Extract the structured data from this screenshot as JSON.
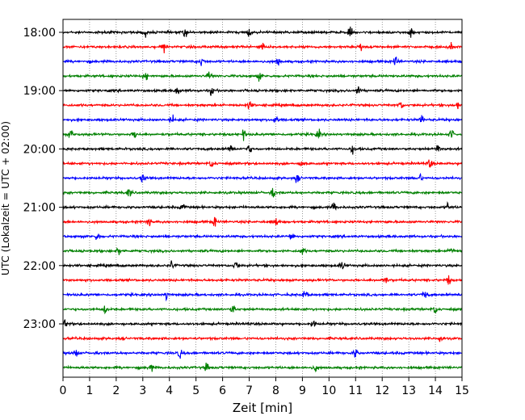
{
  "chart_data": {
    "type": "line",
    "title": "",
    "xlabel": "Zeit  [min]",
    "ylabel": "UTC (Lokalzeit = UTC + 02:00)",
    "xlim": [
      0,
      15
    ],
    "x_ticks": [
      "0",
      "1",
      "2",
      "3",
      "4",
      "5",
      "6",
      "7",
      "8",
      "9",
      "10",
      "11",
      "12",
      "13",
      "14",
      "15"
    ],
    "y_tick_labels": [
      "18:00",
      "19:00",
      "20:00",
      "21:00",
      "22:00",
      "23:00"
    ],
    "trace_interval_minutes": 15,
    "start_time": "18:00",
    "grid": "vertical dotted lines at each minute",
    "trace_colors": [
      "#000000",
      "#ff0000",
      "#0000ff",
      "#008000"
    ],
    "traces": [
      {
        "start": "18:00",
        "color": "#000000",
        "events": [
          3.1,
          4.6,
          7.0,
          10.8,
          13.1
        ]
      },
      {
        "start": "18:15",
        "color": "#ff0000",
        "events": [
          3.8,
          7.5,
          11.2,
          14.6
        ]
      },
      {
        "start": "18:30",
        "color": "#0000ff",
        "events": [
          5.2,
          8.1,
          12.5
        ]
      },
      {
        "start": "18:45",
        "color": "#008000",
        "events": [
          3.1,
          5.5,
          7.4
        ]
      },
      {
        "start": "19:00",
        "color": "#000000",
        "events": [
          4.3,
          5.6,
          11.1
        ]
      },
      {
        "start": "19:15",
        "color": "#ff0000",
        "events": [
          7.0,
          12.7,
          14.8
        ]
      },
      {
        "start": "19:30",
        "color": "#0000ff",
        "events": [
          4.1,
          8.0,
          13.5
        ]
      },
      {
        "start": "19:45",
        "color": "#008000",
        "events": [
          0.3,
          2.7,
          6.8,
          9.6,
          14.6
        ]
      },
      {
        "start": "20:00",
        "color": "#000000",
        "events": [
          6.3,
          7.0,
          10.9,
          14.1
        ]
      },
      {
        "start": "20:15",
        "color": "#ff0000",
        "events": [
          5.6,
          9.0,
          13.8
        ]
      },
      {
        "start": "20:30",
        "color": "#0000ff",
        "events": [
          3.0,
          8.8,
          13.4
        ]
      },
      {
        "start": "20:45",
        "color": "#008000",
        "events": [
          2.5,
          7.9
        ]
      },
      {
        "start": "21:00",
        "color": "#000000",
        "events": [
          4.5,
          10.2,
          14.5
        ]
      },
      {
        "start": "21:15",
        "color": "#ff0000",
        "events": [
          3.2,
          5.7,
          8.0
        ]
      },
      {
        "start": "21:30",
        "color": "#0000ff",
        "events": [
          1.3,
          8.6
        ]
      },
      {
        "start": "21:45",
        "color": "#008000",
        "events": [
          2.1,
          9.0,
          14.6
        ]
      },
      {
        "start": "22:00",
        "color": "#000000",
        "events": [
          4.1,
          6.5,
          10.5
        ]
      },
      {
        "start": "22:15",
        "color": "#ff0000",
        "events": [
          12.1,
          14.5
        ]
      },
      {
        "start": "22:30",
        "color": "#0000ff",
        "events": [
          3.9,
          9.1,
          13.6
        ]
      },
      {
        "start": "22:45",
        "color": "#008000",
        "events": [
          1.6,
          6.4,
          14.0
        ]
      },
      {
        "start": "23:00",
        "color": "#000000",
        "events": [
          0.1,
          9.4
        ]
      },
      {
        "start": "23:15",
        "color": "#ff0000",
        "events": [
          14.2
        ]
      },
      {
        "start": "23:30",
        "color": "#0000ff",
        "events": [
          0.5,
          4.4,
          11.0
        ]
      },
      {
        "start": "23:45",
        "color": "#008000",
        "events": [
          3.3,
          5.4,
          9.5
        ]
      }
    ]
  }
}
